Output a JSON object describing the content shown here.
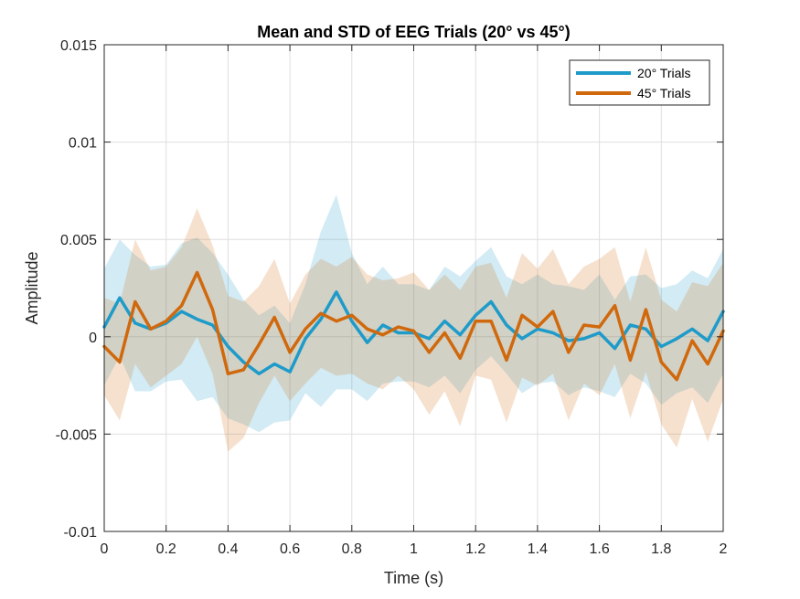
{
  "chart_data": {
    "type": "line",
    "title": "Mean and STD of EEG Trials (20° vs 45°)",
    "xlabel": "Time (s)",
    "ylabel": "Amplitude",
    "xlim": [
      0,
      2
    ],
    "ylim": [
      -0.01,
      0.015
    ],
    "xticks": [
      0,
      0.2,
      0.4,
      0.6,
      0.8,
      1,
      1.2,
      1.4,
      1.6,
      1.8,
      2
    ],
    "xtick_labels": [
      "0",
      "0.2",
      "0.4",
      "0.6",
      "0.8",
      "1",
      "1.2",
      "1.4",
      "1.6",
      "1.8",
      "2"
    ],
    "yticks": [
      -0.01,
      -0.005,
      0,
      0.005,
      0.01,
      0.015
    ],
    "ytick_labels": [
      "-0.01",
      "-0.005",
      "0",
      "0.005",
      "0.01",
      "0.015"
    ],
    "grid": true,
    "legend_position": "top-right",
    "x": [
      0,
      0.05,
      0.1,
      0.15,
      0.2,
      0.25,
      0.3,
      0.35,
      0.4,
      0.45,
      0.5,
      0.55,
      0.6,
      0.65,
      0.7,
      0.75,
      0.8,
      0.85,
      0.9,
      0.95,
      1,
      1.05,
      1.1,
      1.15,
      1.2,
      1.25,
      1.3,
      1.35,
      1.4,
      1.45,
      1.5,
      1.55,
      1.6,
      1.65,
      1.7,
      1.75,
      1.8,
      1.85,
      1.9,
      1.95,
      2
    ],
    "series": [
      {
        "name": "20° Trials",
        "color": "#1f9bc9",
        "mean": [
          0.0005,
          0.002,
          0.0007,
          0.0004,
          0.0007,
          0.0013,
          0.0009,
          0.0006,
          -0.0005,
          -0.0013,
          -0.0019,
          -0.0014,
          -0.0018,
          -0.0001,
          0.0009,
          0.0023,
          0.0008,
          -0.0003,
          0.0006,
          0.0002,
          0.0002,
          -0.0001,
          0.0008,
          0.0001,
          0.0011,
          0.0018,
          0.0006,
          -0.0001,
          0.0004,
          0.0002,
          -0.0002,
          -0.0001,
          0.0002,
          -0.0006,
          0.0006,
          0.0004,
          -0.0005,
          -0.0001,
          0.0004,
          -0.0002,
          0.0013
        ],
        "std": [
          0.003,
          0.003,
          0.0035,
          0.0032,
          0.003,
          0.0035,
          0.0042,
          0.0037,
          0.0037,
          0.0032,
          0.003,
          0.003,
          0.0025,
          0.0028,
          0.0045,
          0.005,
          0.0035,
          0.003,
          0.003,
          0.0025,
          0.0025,
          0.0025,
          0.0028,
          0.003,
          0.0028,
          0.0028,
          0.0025,
          0.0028,
          0.0028,
          0.0025,
          0.0028,
          0.0025,
          0.003,
          0.0025,
          0.0025,
          0.0028,
          0.003,
          0.0028,
          0.003,
          0.0032,
          0.0032
        ]
      },
      {
        "name": "45° Trials",
        "color": "#d0690d",
        "mean": [
          -0.0005,
          -0.0013,
          0.0018,
          0.0004,
          0.0008,
          0.0016,
          0.0033,
          0.0014,
          -0.0019,
          -0.0017,
          -0.0004,
          0.001,
          -0.0008,
          0.0004,
          0.0012,
          0.0008,
          0.0011,
          0.0004,
          0.0001,
          0.0005,
          0.0003,
          -0.0008,
          0.0002,
          -0.0011,
          0.0008,
          0.0008,
          -0.0012,
          0.0011,
          0.0005,
          0.0013,
          -0.0008,
          0.0006,
          0.0005,
          0.0016,
          -0.0012,
          0.0014,
          -0.0013,
          -0.0022,
          -0.0002,
          -0.0014,
          0.0003
        ],
        "std": [
          0.0025,
          0.003,
          0.0032,
          0.003,
          0.0028,
          0.003,
          0.0033,
          0.0033,
          0.004,
          0.0035,
          0.003,
          0.003,
          0.0025,
          0.0028,
          0.0028,
          0.0028,
          0.003,
          0.0028,
          0.0028,
          0.0025,
          0.003,
          0.0032,
          0.003,
          0.0035,
          0.0028,
          0.003,
          0.0032,
          0.0032,
          0.003,
          0.0032,
          0.0035,
          0.003,
          0.0035,
          0.003,
          0.003,
          0.0032,
          0.0032,
          0.0035,
          0.003,
          0.004,
          0.0035
        ]
      }
    ]
  }
}
